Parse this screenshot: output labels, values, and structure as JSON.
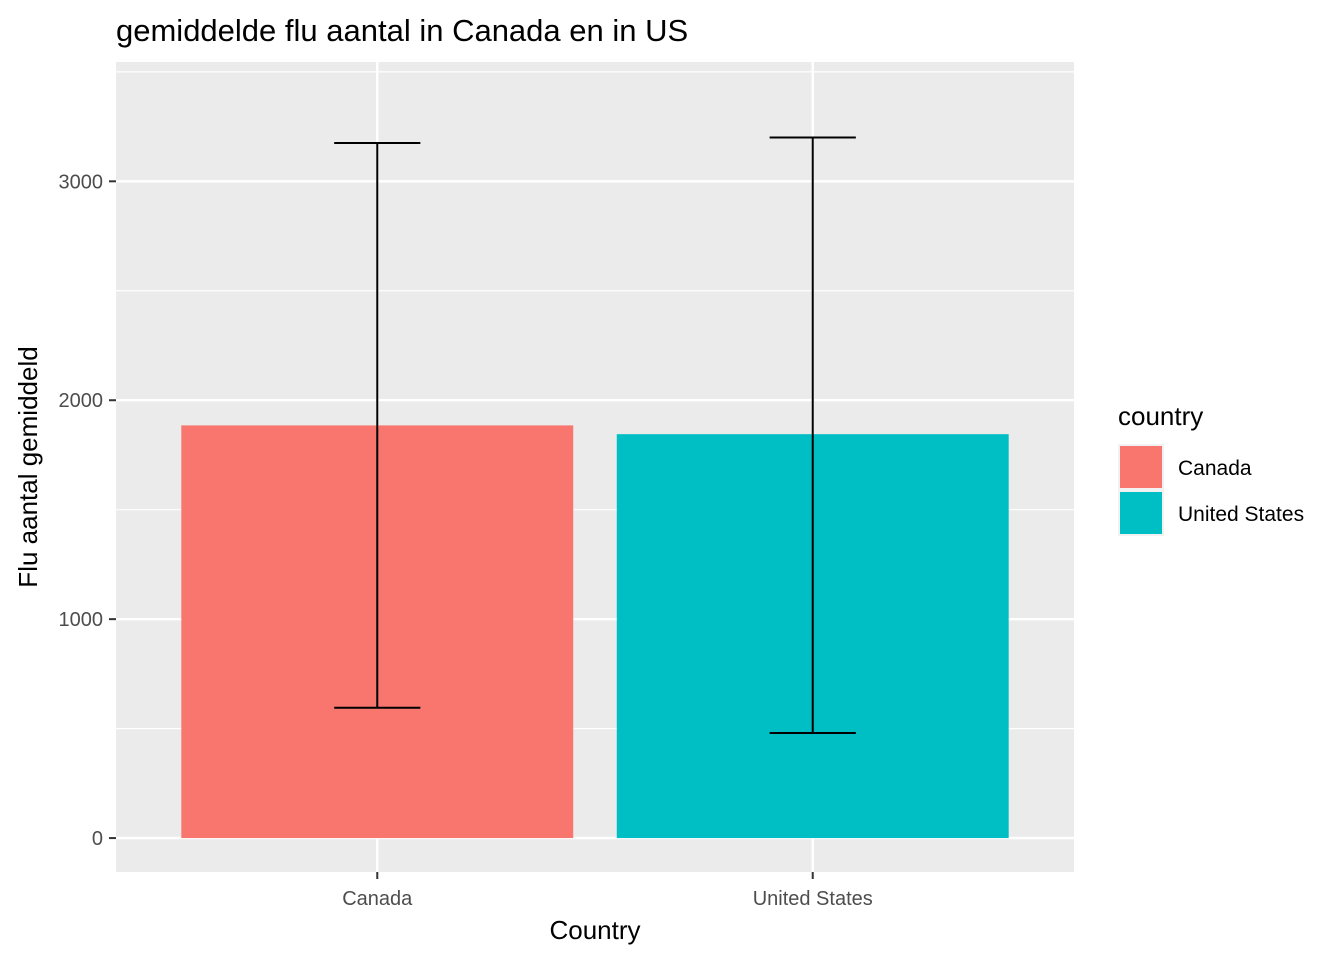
{
  "chart_data": {
    "type": "bar",
    "title": "gemiddelde flu aantal in Canada en in US",
    "xlabel": "Country",
    "ylabel": "Flu aantal gemiddeld",
    "categories": [
      "Canada",
      "United States"
    ],
    "values": [
      1885,
      1845
    ],
    "error_bars": [
      {
        "lower": 595,
        "upper": 3175
      },
      {
        "lower": 480,
        "upper": 3200
      }
    ],
    "colors": [
      "#F8766D",
      "#00BFC4"
    ],
    "ylim": [
      -155,
      3545
    ],
    "yticks": [
      0,
      1000,
      2000,
      3000
    ],
    "ytick_labels": [
      "0",
      "1000",
      "2000",
      "3000"
    ],
    "grid": true,
    "panel_background": "#EBEBEB",
    "gridline_color": "#FFFFFF",
    "legend": {
      "title": "country",
      "placement": "right",
      "entries": [
        "Canada",
        "United States"
      ]
    }
  }
}
